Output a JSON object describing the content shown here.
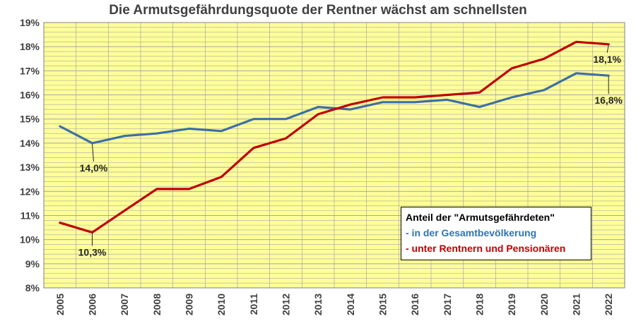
{
  "chart_data": {
    "type": "line",
    "title": "Die Armutsgefährdungsquote der Rentner wächst am schnellsten",
    "xlabel": "",
    "ylabel": "",
    "x": [
      "2005",
      "2006",
      "2007",
      "2008",
      "2009",
      "2010",
      "2011",
      "2012",
      "2013",
      "2014",
      "2015",
      "2016",
      "2017",
      "2018",
      "2019",
      "2020",
      "2021",
      "2022"
    ],
    "y_ticks": [
      "8%",
      "9%",
      "10%",
      "11%",
      "12%",
      "13%",
      "14%",
      "15%",
      "16%",
      "17%",
      "18%",
      "19%"
    ],
    "ylim": [
      8,
      19
    ],
    "grid": true,
    "legend_position": "bottom-right",
    "legend_title": "Anteil der \"Armutsgefährdeten\"",
    "series": [
      {
        "name": "- in der Gesamtbevölkerung",
        "color": "#3d6fa5",
        "values": [
          14.7,
          14.0,
          14.3,
          14.4,
          14.6,
          14.5,
          15.0,
          15.0,
          15.5,
          15.4,
          15.7,
          15.7,
          15.8,
          15.5,
          15.9,
          16.2,
          16.9,
          16.8
        ]
      },
      {
        "name": "- unter Rentnern und Pensionären",
        "color": "#c00000",
        "values": [
          10.7,
          10.3,
          11.2,
          12.1,
          12.1,
          12.6,
          13.8,
          14.2,
          15.2,
          15.6,
          15.9,
          15.9,
          16.0,
          16.1,
          17.1,
          17.5,
          18.2,
          18.1
        ]
      }
    ],
    "annotations": [
      {
        "text": "14,0%",
        "series": 0,
        "x": "2006",
        "y": 14.0
      },
      {
        "text": "10,3%",
        "series": 1,
        "x": "2006",
        "y": 10.3
      },
      {
        "text": "18,1%",
        "series": 1,
        "x": "2022",
        "y": 18.1
      },
      {
        "text": "16,8%",
        "series": 0,
        "x": "2022",
        "y": 16.8
      }
    ],
    "colors": {
      "plot_background": "#ffff99",
      "gridline": "#a6a6a6",
      "legend_blue": "#2e75b6",
      "legend_red": "#c00000"
    }
  }
}
